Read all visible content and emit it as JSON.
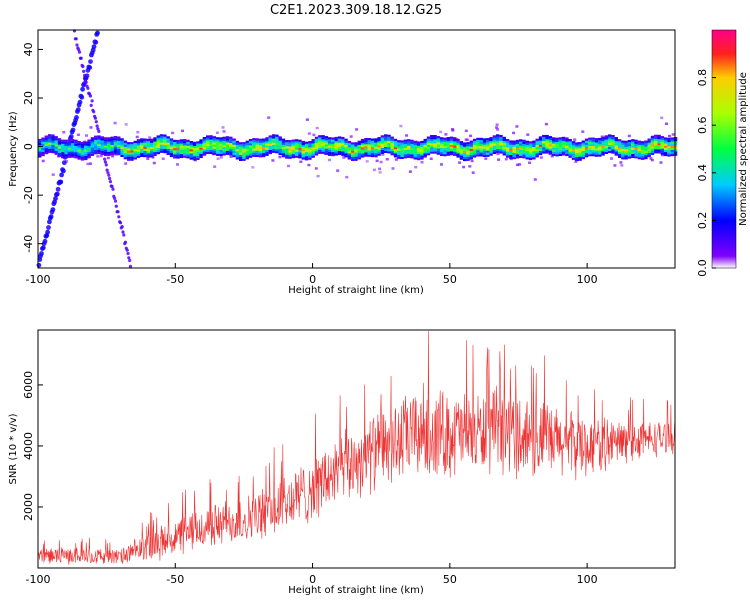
{
  "title": "C2E1.2023.309.18.12.G25",
  "chart_data": [
    {
      "type": "heatmap",
      "xlabel": "Height of straight line (km)",
      "ylabel": "Frequency (Hz)",
      "xlim": [
        -100,
        132
      ],
      "ylim": [
        -50,
        48
      ],
      "x_ticks": [
        -100,
        -50,
        0,
        50,
        100
      ],
      "y_ticks": [
        -40,
        -20,
        0,
        20,
        40
      ],
      "colorbar": {
        "label": "Normalized spectral amplitude",
        "range": [
          0.0,
          1.0
        ],
        "ticks": [
          "0.0",
          "0.2",
          "0.4",
          "0.6",
          "0.8"
        ],
        "colormap": "rainbow (white - violet - blue - cyan - green - yellow - red - magenta)"
      },
      "features": {
        "main_band": {
          "frequency_hz": 0,
          "half_width_hz": 4,
          "x_range": [
            -100,
            132
          ],
          "peak_amplitude": 0.9
        },
        "sweeping_traces": [
          {
            "x_range": [
              -100,
              -78
            ],
            "frequency_range": [
              -50,
              48
            ],
            "amplitude": 0.15
          },
          {
            "x_range": [
              -87,
              -66
            ],
            "frequency_range": [
              48,
              -50
            ],
            "amplitude": 0.08
          }
        ]
      },
      "grid": false
    },
    {
      "type": "line",
      "xlabel": "Height of straight line (km)",
      "ylabel": "SNR (10 * v/v)",
      "xlim": [
        -100,
        132
      ],
      "ylim": [
        0,
        7800
      ],
      "x_ticks": [
        -100,
        -50,
        0,
        50,
        100
      ],
      "y_ticks": [
        2000,
        4000,
        6000
      ],
      "color": "#ee3333",
      "series_envelope": {
        "x": [
          -100,
          -80,
          -70,
          -60,
          -50,
          -40,
          -30,
          -20,
          -10,
          0,
          10,
          20,
          30,
          40,
          50,
          60,
          70,
          80,
          90,
          100,
          110,
          120,
          132
        ],
        "mean": [
          400,
          400,
          350,
          700,
          1000,
          1300,
          1500,
          1700,
          2100,
          2600,
          3200,
          3700,
          4100,
          4500,
          4400,
          4400,
          4500,
          4300,
          4100,
          4000,
          4100,
          4200,
          4300
        ],
        "spread": [
          300,
          300,
          300,
          550,
          700,
          800,
          850,
          900,
          1100,
          1200,
          1300,
          1400,
          1500,
          1700,
          1600,
          1500,
          1600,
          1500,
          1300,
          1100,
          900,
          700,
          600
        ]
      },
      "grid": false
    }
  ]
}
